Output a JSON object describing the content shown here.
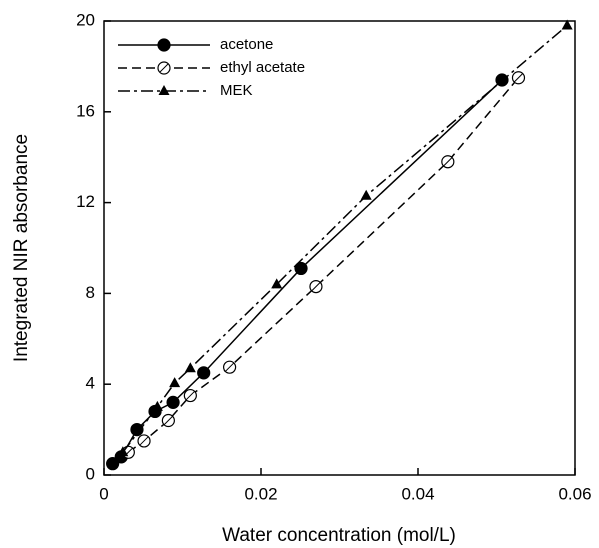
{
  "chart_data": {
    "type": "line",
    "x_label": "Water concentration (mol/L)",
    "y_label": "Integrated NIR absorbance",
    "xlim": [
      0,
      0.06
    ],
    "ylim": [
      0,
      20
    ],
    "xticks": [
      0,
      0.02,
      0.04,
      0.06
    ],
    "yticks": [
      0,
      4,
      8,
      12,
      16,
      20
    ],
    "legend": "upper left",
    "series": [
      {
        "name": "acetone",
        "color": "#000000",
        "marker": "filled-circle",
        "line_style": "solid",
        "x": [
          0.0011,
          0.0022,
          0.0042,
          0.0065,
          0.0088,
          0.0127,
          0.0251,
          0.0507
        ],
        "values": [
          0.5,
          0.8,
          2.0,
          2.8,
          3.2,
          4.5,
          9.1,
          17.4
        ]
      },
      {
        "name": "ethyl acetate",
        "color": "#000000",
        "marker": "open-circle",
        "line_style": "dashed",
        "x": [
          0.0031,
          0.0051,
          0.0082,
          0.011,
          0.016,
          0.027,
          0.0438,
          0.0528
        ],
        "values": [
          1.0,
          1.5,
          2.4,
          3.5,
          4.75,
          8.3,
          13.8,
          17.5
        ]
      },
      {
        "name": "MEK",
        "color": "#000000",
        "marker": "triangle",
        "line_style": "dash-dot",
        "x": [
          0.0024,
          0.0068,
          0.009,
          0.011,
          0.022,
          0.0334,
          0.059
        ],
        "values": [
          1.0,
          3.0,
          4.05,
          4.7,
          8.4,
          12.3,
          19.8
        ]
      }
    ]
  }
}
